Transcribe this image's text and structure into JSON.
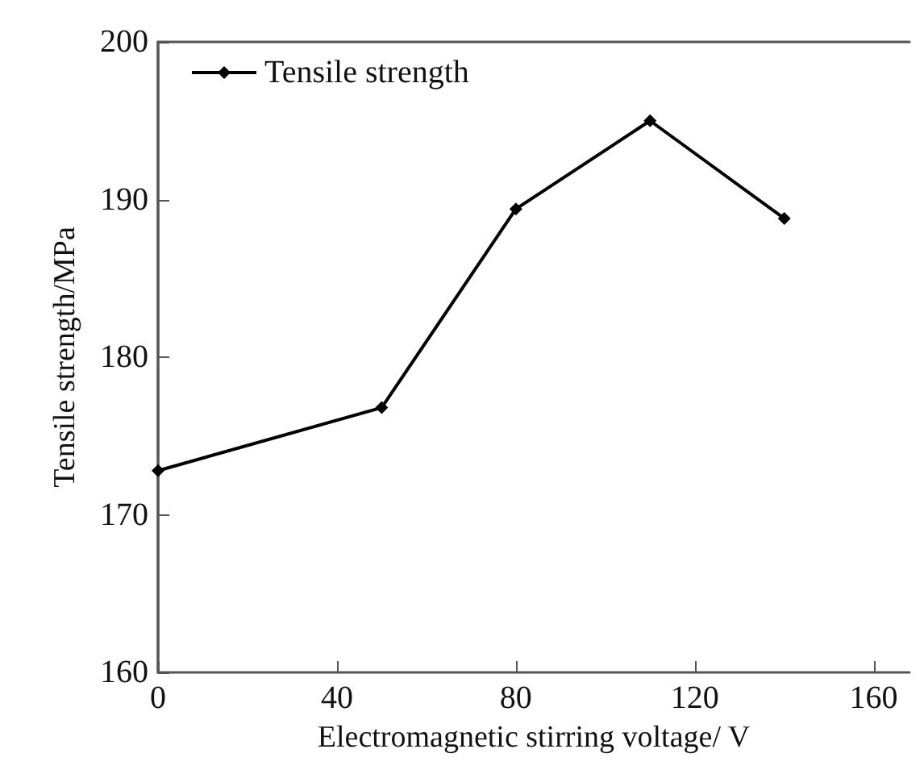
{
  "chart_data": {
    "type": "line",
    "xlabel": "Electromagnetic stirring voltage/ V",
    "ylabel": "Tensile strength/MPa",
    "x": [
      0,
      50,
      80,
      110,
      140
    ],
    "series": [
      {
        "name": "Tensile strength",
        "color": "#000000",
        "values": [
          172.8,
          176.8,
          189.4,
          195.0,
          188.8
        ]
      }
    ],
    "xlim": [
      0,
      168
    ],
    "xticks": [
      0,
      40,
      80,
      120,
      160
    ],
    "ylim": [
      160,
      200
    ],
    "yticks": [
      160,
      170,
      180,
      190,
      200
    ],
    "grid": false,
    "legend": "top left",
    "marker": "diamond",
    "line_style": "solid"
  }
}
